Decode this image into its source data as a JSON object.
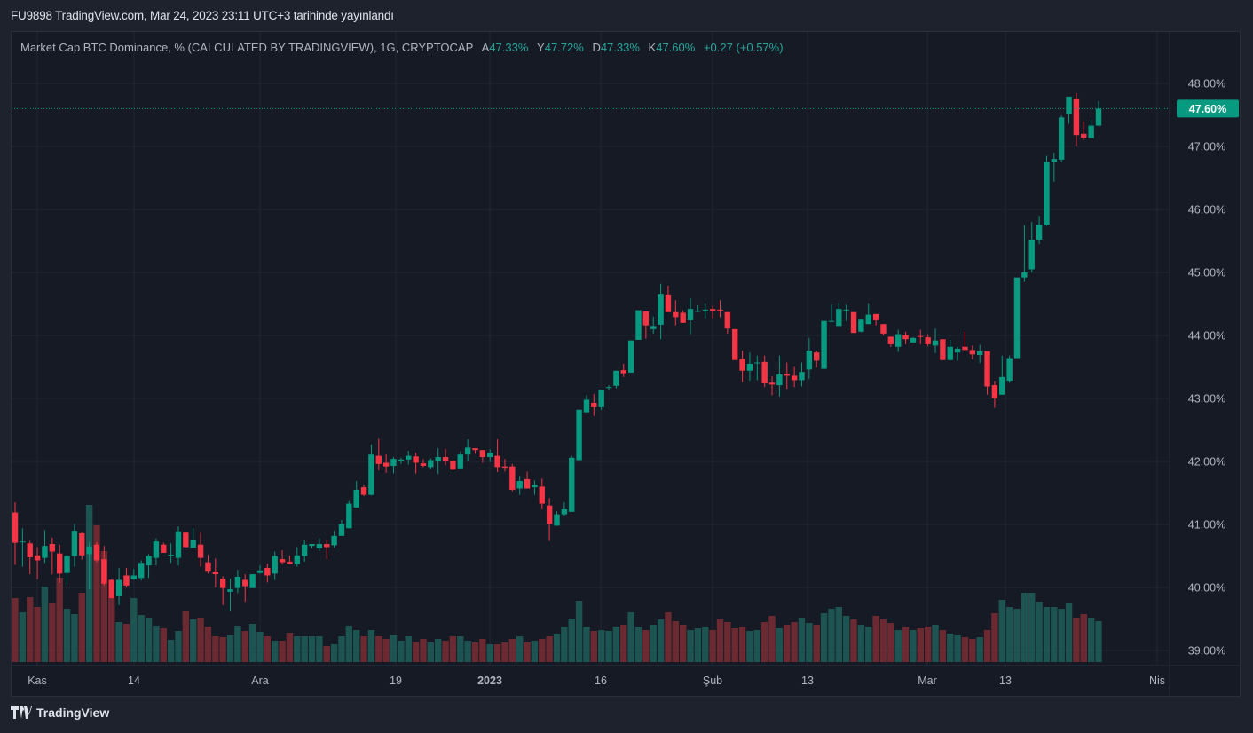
{
  "header": {
    "published": "FU9898 TradingView.com, Mar 24, 2023 23:11 UTC+3 tarihinde yayınlandı"
  },
  "legend": {
    "symbol": "Market Cap BTC Dominance, % (CALCULATED BY TRADINGVIEW), 1G, CRYPTOCAP",
    "open_label": "A",
    "open": "47.33%",
    "high_label": "Y",
    "high": "47.72%",
    "low_label": "D",
    "low": "47.33%",
    "close_label": "K",
    "close": "47.60%",
    "change": "+0.27 (+0.57%)"
  },
  "footer": {
    "brand": "TradingView"
  },
  "colors": {
    "up": "#089981",
    "down": "#f23645",
    "up_volume": "#1f5f5b",
    "down_volume": "#7a2e34",
    "background": "#161a25",
    "grid": "#232734"
  },
  "chart_data": {
    "type": "candlestick",
    "title": "Market Cap BTC Dominance, % (CALCULATED BY TRADINGVIEW), 1G, CRYPTOCAP",
    "interval": "1D",
    "ylim": [
      38.8,
      48.3
    ],
    "y_ticks": [
      "48.00%",
      "47.00%",
      "46.00%",
      "45.00%",
      "44.00%",
      "43.00%",
      "42.00%",
      "41.00%",
      "40.00%",
      "39.00%"
    ],
    "x_ticks": [
      "Kas",
      "14",
      "Ara",
      "19",
      "2023",
      "16",
      "Şub",
      "13",
      "Mar",
      "13",
      "Nis"
    ],
    "last_price_label": "47.60%",
    "last_price": 47.6,
    "grid": true,
    "volume_units": "relative",
    "fields": [
      "open",
      "high",
      "low",
      "close",
      "volume"
    ],
    "candles": [
      [
        41.19,
        41.35,
        40.36,
        40.71,
        72
      ],
      [
        40.72,
        40.94,
        40.33,
        40.73,
        56
      ],
      [
        40.7,
        40.74,
        40.21,
        40.48,
        73
      ],
      [
        40.51,
        40.64,
        40.13,
        40.43,
        62
      ],
      [
        40.47,
        40.91,
        40.39,
        40.66,
        85
      ],
      [
        40.69,
        40.79,
        40.21,
        40.57,
        66
      ],
      [
        40.54,
        40.68,
        40.07,
        40.22,
        95
      ],
      [
        40.23,
        40.53,
        40.05,
        40.5,
        60
      ],
      [
        40.5,
        41.01,
        40.33,
        40.9,
        54
      ],
      [
        40.86,
        40.87,
        40.44,
        40.51,
        78
      ],
      [
        40.53,
        40.72,
        39.97,
        40.65,
        177
      ],
      [
        40.68,
        40.72,
        40.4,
        40.43,
        154
      ],
      [
        40.45,
        40.66,
        40.03,
        40.06,
        125
      ],
      [
        40.12,
        40.13,
        39.83,
        39.83,
        72
      ],
      [
        39.86,
        40.31,
        39.72,
        40.12,
        45
      ],
      [
        40.19,
        40.31,
        40.0,
        40.03,
        43
      ],
      [
        40.13,
        40.29,
        40.12,
        40.19,
        72
      ],
      [
        40.15,
        40.43,
        40.11,
        40.39,
        53
      ],
      [
        40.35,
        40.53,
        40.15,
        40.5,
        50
      ],
      [
        40.47,
        40.78,
        40.35,
        40.73,
        41
      ],
      [
        40.68,
        40.71,
        40.55,
        40.55,
        38
      ],
      [
        40.51,
        40.7,
        40.39,
        40.52,
        25
      ],
      [
        40.47,
        40.97,
        40.35,
        40.89,
        35
      ],
      [
        40.87,
        40.87,
        40.64,
        40.64,
        58
      ],
      [
        40.63,
        40.94,
        40.63,
        40.76,
        48
      ],
      [
        40.68,
        40.87,
        40.33,
        40.47,
        50
      ],
      [
        40.4,
        40.52,
        40.22,
        40.25,
        40
      ],
      [
        40.24,
        40.46,
        40.0,
        40.21,
        29
      ],
      [
        40.14,
        40.18,
        39.72,
        39.99,
        28
      ],
      [
        39.93,
        40.14,
        39.63,
        39.97,
        30
      ],
      [
        39.99,
        40.28,
        39.91,
        40.17,
        41
      ],
      [
        40.12,
        40.21,
        39.77,
        40.02,
        35
      ],
      [
        39.99,
        40.21,
        39.99,
        40.21,
        43
      ],
      [
        40.23,
        40.35,
        40.22,
        40.27,
        34
      ],
      [
        40.31,
        40.38,
        40.08,
        40.19,
        29
      ],
      [
        40.22,
        40.57,
        40.12,
        40.5,
        24
      ],
      [
        40.45,
        40.59,
        40.37,
        40.4,
        24
      ],
      [
        40.41,
        40.51,
        40.37,
        40.37,
        33
      ],
      [
        40.37,
        40.64,
        40.33,
        40.51,
        29
      ],
      [
        40.5,
        40.75,
        40.41,
        40.68,
        29
      ],
      [
        40.66,
        40.69,
        40.62,
        40.69,
        29
      ],
      [
        40.62,
        40.78,
        40.58,
        40.69,
        29
      ],
      [
        40.69,
        40.76,
        40.45,
        40.64,
        18
      ],
      [
        40.67,
        40.9,
        40.63,
        40.82,
        20
      ],
      [
        40.82,
        41.07,
        40.82,
        41.01,
        29
      ],
      [
        40.94,
        41.37,
        40.94,
        41.33,
        41
      ],
      [
        41.27,
        41.69,
        41.27,
        41.55,
        36
      ],
      [
        41.59,
        41.63,
        41.45,
        41.47,
        29
      ],
      [
        41.47,
        42.27,
        41.46,
        42.11,
        36
      ],
      [
        42.09,
        42.36,
        41.86,
        41.96,
        29
      ],
      [
        41.98,
        42.11,
        41.82,
        41.92,
        26
      ],
      [
        41.93,
        42.07,
        41.81,
        42.04,
        30
      ],
      [
        42.01,
        42.06,
        41.96,
        42.03,
        24
      ],
      [
        42.03,
        42.17,
        41.95,
        42.09,
        29
      ],
      [
        42.08,
        42.14,
        41.81,
        41.98,
        22
      ],
      [
        41.97,
        42.04,
        41.91,
        41.93,
        26
      ],
      [
        41.91,
        42.05,
        41.88,
        42.02,
        22
      ],
      [
        42.01,
        42.21,
        41.8,
        42.07,
        26
      ],
      [
        42.07,
        42.2,
        41.94,
        42.01,
        24
      ],
      [
        42.01,
        42.02,
        41.86,
        41.87,
        29
      ],
      [
        41.89,
        42.16,
        41.89,
        42.11,
        29
      ],
      [
        42.11,
        42.35,
        42.0,
        42.22,
        24
      ],
      [
        42.21,
        42.21,
        42.12,
        42.18,
        22
      ],
      [
        42.18,
        42.18,
        41.98,
        42.07,
        26
      ],
      [
        42.07,
        42.19,
        41.99,
        42.14,
        20
      ],
      [
        42.09,
        42.35,
        41.83,
        41.91,
        20
      ],
      [
        41.92,
        42.04,
        41.84,
        41.9,
        22
      ],
      [
        41.92,
        41.96,
        41.53,
        41.55,
        26
      ],
      [
        41.57,
        41.77,
        41.47,
        41.69,
        29
      ],
      [
        41.72,
        41.84,
        41.57,
        41.57,
        22
      ],
      [
        41.59,
        41.7,
        41.47,
        41.63,
        24
      ],
      [
        41.6,
        41.73,
        41.24,
        41.33,
        26
      ],
      [
        41.3,
        41.42,
        40.74,
        41.01,
        29
      ],
      [
        40.98,
        41.21,
        40.98,
        41.16,
        32
      ],
      [
        41.16,
        41.35,
        41.14,
        41.24,
        40
      ],
      [
        41.2,
        42.09,
        41.2,
        42.06,
        49
      ],
      [
        42.02,
        42.82,
        42.02,
        42.82,
        69
      ],
      [
        42.78,
        43.05,
        42.78,
        42.98,
        40
      ],
      [
        42.93,
        43.07,
        42.72,
        42.86,
        35
      ],
      [
        42.86,
        43.14,
        42.82,
        43.14,
        36
      ],
      [
        43.17,
        43.21,
        43.13,
        43.18,
        35
      ],
      [
        43.2,
        43.44,
        43.16,
        43.44,
        40
      ],
      [
        43.45,
        43.55,
        43.34,
        43.4,
        42
      ],
      [
        43.41,
        43.92,
        43.41,
        43.92,
        56
      ],
      [
        43.93,
        44.4,
        43.93,
        44.4,
        40
      ],
      [
        44.38,
        44.38,
        43.95,
        44.16,
        36
      ],
      [
        44.1,
        44.3,
        44.03,
        44.15,
        42
      ],
      [
        44.17,
        44.82,
        43.94,
        44.66,
        48
      ],
      [
        44.65,
        44.79,
        44.37,
        44.37,
        56
      ],
      [
        44.37,
        44.56,
        44.16,
        44.29,
        46
      ],
      [
        44.36,
        44.4,
        44.2,
        44.2,
        42
      ],
      [
        44.24,
        44.59,
        44.02,
        44.42,
        36
      ],
      [
        44.38,
        44.48,
        44.37,
        44.39,
        38
      ],
      [
        44.39,
        44.5,
        44.27,
        44.41,
        40
      ],
      [
        44.42,
        44.47,
        44.27,
        44.39,
        36
      ],
      [
        44.41,
        44.56,
        44.29,
        44.39,
        48
      ],
      [
        44.37,
        44.37,
        44.03,
        44.11,
        45
      ],
      [
        44.1,
        44.1,
        43.61,
        43.61,
        38
      ],
      [
        43.63,
        43.76,
        43.26,
        43.44,
        40
      ],
      [
        43.44,
        43.73,
        43.28,
        43.55,
        35
      ],
      [
        43.56,
        43.68,
        43.29,
        43.57,
        36
      ],
      [
        43.58,
        43.68,
        43.18,
        43.24,
        45
      ],
      [
        43.25,
        43.35,
        43.05,
        43.22,
        52
      ],
      [
        43.21,
        43.68,
        43.03,
        43.38,
        38
      ],
      [
        43.39,
        43.57,
        43.15,
        43.36,
        42
      ],
      [
        43.36,
        43.5,
        43.18,
        43.29,
        45
      ],
      [
        43.29,
        43.57,
        43.19,
        43.42,
        50
      ],
      [
        43.46,
        43.96,
        43.31,
        43.76,
        44
      ],
      [
        43.73,
        43.76,
        43.49,
        43.6,
        42
      ],
      [
        43.47,
        44.23,
        43.47,
        44.23,
        55
      ],
      [
        44.22,
        44.49,
        44.22,
        44.23,
        60
      ],
      [
        44.15,
        44.51,
        44.15,
        44.42,
        62
      ],
      [
        44.41,
        44.49,
        44.23,
        44.41,
        52
      ],
      [
        44.37,
        44.37,
        44.04,
        44.04,
        48
      ],
      [
        44.06,
        44.25,
        44.05,
        44.25,
        42
      ],
      [
        44.18,
        44.5,
        44.18,
        44.33,
        40
      ],
      [
        44.34,
        44.34,
        44.16,
        44.24,
        52
      ],
      [
        44.18,
        44.18,
        44.0,
        44.03,
        48
      ],
      [
        43.98,
        43.98,
        43.82,
        43.86,
        44
      ],
      [
        43.82,
        44.09,
        43.74,
        44.02,
        36
      ],
      [
        44.0,
        44.06,
        43.86,
        43.94,
        40
      ],
      [
        43.89,
        43.97,
        43.89,
        43.96,
        36
      ],
      [
        43.99,
        44.09,
        43.86,
        43.98,
        38
      ],
      [
        43.97,
        44.02,
        43.83,
        43.86,
        40
      ],
      [
        43.84,
        44.11,
        43.72,
        43.92,
        42
      ],
      [
        43.94,
        43.94,
        43.61,
        43.61,
        36
      ],
      [
        43.61,
        43.93,
        43.6,
        43.82,
        32
      ],
      [
        43.73,
        43.82,
        43.6,
        43.79,
        30
      ],
      [
        43.82,
        44.06,
        43.75,
        43.77,
        28
      ],
      [
        43.77,
        43.84,
        43.62,
        43.7,
        26
      ],
      [
        43.69,
        43.85,
        43.56,
        43.75,
        28
      ],
      [
        43.75,
        43.75,
        43.06,
        43.19,
        36
      ],
      [
        43.21,
        43.28,
        42.85,
        43.0,
        55
      ],
      [
        43.06,
        43.68,
        43.06,
        43.34,
        70
      ],
      [
        43.28,
        43.68,
        43.25,
        43.64,
        62
      ],
      [
        43.64,
        44.92,
        43.64,
        44.92,
        60
      ],
      [
        44.92,
        45.75,
        44.85,
        45.0,
        78
      ],
      [
        45.05,
        45.8,
        45.0,
        45.52,
        78
      ],
      [
        45.52,
        45.9,
        45.45,
        45.76,
        68
      ],
      [
        45.76,
        46.85,
        45.74,
        46.76,
        62
      ],
      [
        46.75,
        46.9,
        46.44,
        46.8,
        62
      ],
      [
        46.79,
        47.49,
        46.75,
        47.46,
        60
      ],
      [
        47.52,
        47.79,
        47.36,
        47.79,
        66
      ],
      [
        47.76,
        47.85,
        47.0,
        47.18,
        50
      ],
      [
        47.2,
        47.4,
        47.1,
        47.14,
        54
      ],
      [
        47.13,
        47.43,
        47.13,
        47.33,
        50
      ],
      [
        47.33,
        47.72,
        47.33,
        47.6,
        46
      ]
    ]
  }
}
